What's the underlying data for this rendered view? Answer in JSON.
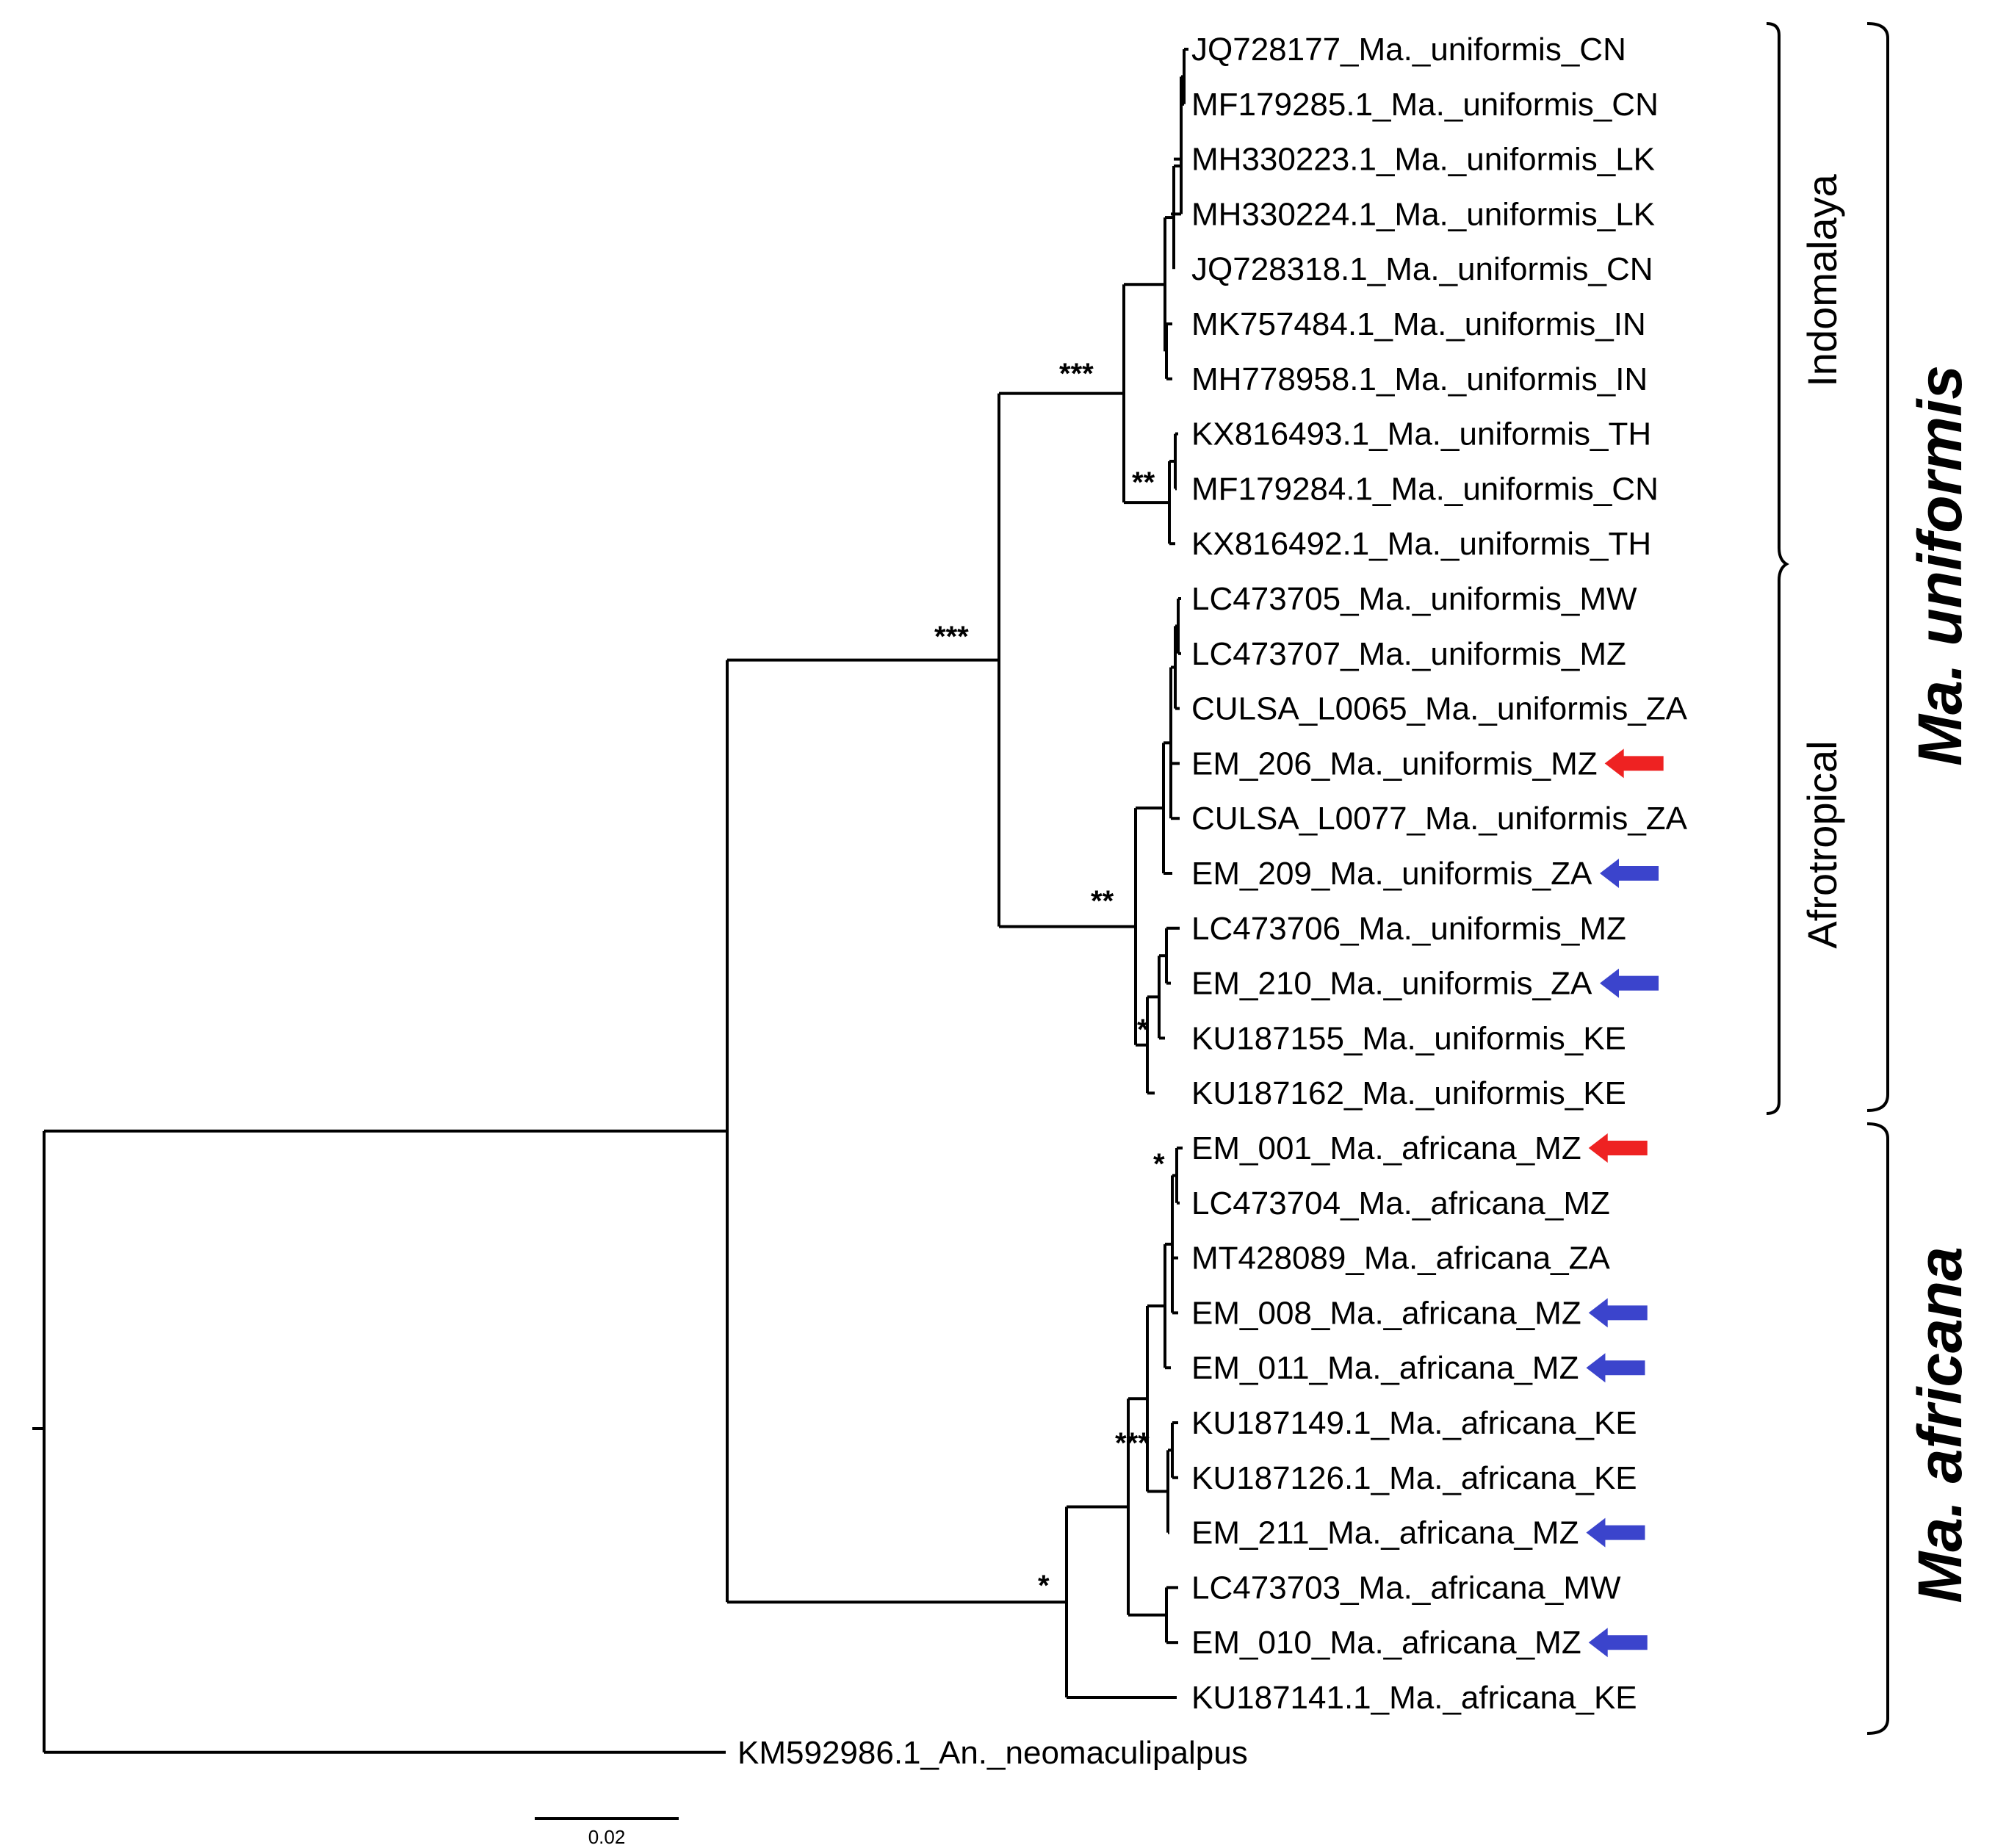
{
  "tree": {
    "taxa": [
      "JQ728177_Ma._uniformis_CN",
      "MF179285.1_Ma._uniformis_CN",
      "MH330223.1_Ma._uniformis_LK",
      "MH330224.1_Ma._uniformis_LK",
      "JQ728318.1_Ma._uniformis_CN",
      "MK757484.1_Ma._uniformis_IN",
      "MH778958.1_Ma._uniformis_IN",
      "KX816493.1_Ma._uniformis_TH",
      "MF179284.1_Ma._uniformis_CN",
      "KX816492.1_Ma._uniformis_TH",
      "LC473705_Ma._uniformis_MW",
      "LC473707_Ma._uniformis_MZ",
      "CULSA_L0065_Ma._uniformis_ZA",
      "EM_206_Ma._uniformis_MZ",
      "CULSA_L0077_Ma._uniformis_ZA",
      "EM_209_Ma._uniformis_ZA",
      "LC473706_Ma._uniformis_MZ",
      "EM_210_Ma._uniformis_ZA",
      "KU187155_Ma._uniformis_KE",
      "KU187162_Ma._uniformis_KE",
      "EM_001_Ma._africana_MZ",
      "LC473704_Ma._africana_MZ",
      "MT428089_Ma._africana_ZA",
      "EM_008_Ma._africana_MZ",
      "EM_011_Ma._africana_MZ",
      "KU187149.1_Ma._africana_KE",
      "KU187126.1_Ma._africana_KE",
      "EM_211_Ma._africana_MZ",
      "LC473703_Ma._africana_MW",
      "EM_010_Ma._africana_MZ",
      "KU187141.1_Ma._africana_KE",
      "KM592986.1_An._neomaculipalpus"
    ],
    "highlighted": [
      {
        "taxon": "EM_206_Ma._uniformis_MZ",
        "arrow_color": "#ee2222"
      },
      {
        "taxon": "EM_209_Ma._uniformis_ZA",
        "arrow_color": "#3b44cc"
      },
      {
        "taxon": "EM_210_Ma._uniformis_ZA",
        "arrow_color": "#3b44cc"
      },
      {
        "taxon": "EM_001_Ma._africana_MZ",
        "arrow_color": "#ee2222"
      },
      {
        "taxon": "EM_008_Ma._africana_MZ",
        "arrow_color": "#3b44cc"
      },
      {
        "taxon": "EM_011_Ma._africana_MZ",
        "arrow_color": "#3b44cc"
      },
      {
        "taxon": "EM_211_Ma._africana_MZ",
        "arrow_color": "#3b44cc"
      },
      {
        "taxon": "EM_010_Ma._africana_MZ",
        "arrow_color": "#3b44cc"
      }
    ],
    "supports": {
      "indomalaya_node": "***",
      "th_cn_subclade": "**",
      "uniformis_node": "***",
      "afrotropical_node": "**",
      "ke_subclade": "*",
      "em001_pair": "*",
      "africana_inner": "***",
      "africana_node": "*"
    },
    "clades": {
      "indomalaya": "Indomalaya",
      "afrotropical": "Afrotropical",
      "uniformis": "Ma. uniformis",
      "africana": "Ma. africana"
    },
    "scale_bar": {
      "label": "0.02"
    }
  }
}
